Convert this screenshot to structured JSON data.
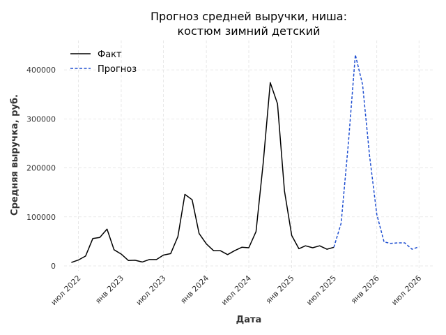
{
  "chart_data": {
    "type": "line",
    "title": [
      "Прогноз средней выручки, ниша:",
      "костюм зимний детский"
    ],
    "xlabel": "Дата",
    "ylabel": "Средняя выручка, руб.",
    "ylim": [
      -10000,
      460000
    ],
    "xlim": [
      "2022-05-01",
      "2026-09-01"
    ],
    "grid": true,
    "legend_position": "top-left",
    "x_ticks": [
      {
        "date": "2022-07-01",
        "label": "июл 2022"
      },
      {
        "date": "2023-01-01",
        "label": "янв 2023"
      },
      {
        "date": "2023-07-01",
        "label": "июл 2023"
      },
      {
        "date": "2024-01-01",
        "label": "янв 2024"
      },
      {
        "date": "2024-07-01",
        "label": "июл 2024"
      },
      {
        "date": "2025-01-01",
        "label": "янв 2025"
      },
      {
        "date": "2025-07-01",
        "label": "июл 2025"
      },
      {
        "date": "2026-01-01",
        "label": "янв 2026"
      },
      {
        "date": "2026-07-01",
        "label": "июл 2026"
      }
    ],
    "y_ticks": [
      {
        "value": 0,
        "label": "0"
      },
      {
        "value": 100000,
        "label": "100000"
      },
      {
        "value": 200000,
        "label": "200000"
      },
      {
        "value": 300000,
        "label": "300000"
      },
      {
        "value": 400000,
        "label": "400000"
      }
    ],
    "series": [
      {
        "name": "Факт",
        "color": "#000000",
        "style": "solid",
        "points": [
          [
            "2022-06-01",
            7000
          ],
          [
            "2022-07-01",
            12000
          ],
          [
            "2022-08-01",
            20000
          ],
          [
            "2022-09-01",
            56000
          ],
          [
            "2022-10-01",
            58000
          ],
          [
            "2022-11-01",
            75000
          ],
          [
            "2022-12-01",
            33000
          ],
          [
            "2023-01-01",
            24000
          ],
          [
            "2023-02-01",
            11000
          ],
          [
            "2023-03-01",
            11500
          ],
          [
            "2023-04-01",
            8000
          ],
          [
            "2023-05-01",
            13000
          ],
          [
            "2023-06-01",
            13000
          ],
          [
            "2023-07-01",
            22000
          ],
          [
            "2023-08-01",
            25000
          ],
          [
            "2023-09-01",
            60000
          ],
          [
            "2023-10-01",
            146000
          ],
          [
            "2023-11-01",
            135000
          ],
          [
            "2023-12-01",
            66000
          ],
          [
            "2024-01-01",
            45000
          ],
          [
            "2024-02-01",
            31000
          ],
          [
            "2024-03-01",
            31000
          ],
          [
            "2024-04-01",
            23000
          ],
          [
            "2024-05-01",
            31000
          ],
          [
            "2024-06-01",
            38000
          ],
          [
            "2024-07-01",
            37000
          ],
          [
            "2024-08-01",
            70000
          ],
          [
            "2024-09-01",
            210000
          ],
          [
            "2024-10-01",
            374000
          ],
          [
            "2024-11-01",
            331000
          ],
          [
            "2024-12-01",
            153000
          ],
          [
            "2025-01-01",
            62000
          ],
          [
            "2025-02-01",
            35000
          ],
          [
            "2025-03-01",
            41000
          ],
          [
            "2025-04-01",
            37000
          ],
          [
            "2025-05-01",
            41000
          ],
          [
            "2025-06-01",
            34000
          ],
          [
            "2025-07-01",
            38000
          ]
        ]
      },
      {
        "name": "Прогноз",
        "color": "#1f4fd1",
        "style": "dashed",
        "points": [
          [
            "2025-07-01",
            38000
          ],
          [
            "2025-08-01",
            87000
          ],
          [
            "2025-09-01",
            250000
          ],
          [
            "2025-10-01",
            431000
          ],
          [
            "2025-11-01",
            370000
          ],
          [
            "2025-12-01",
            225000
          ],
          [
            "2026-01-01",
            105000
          ],
          [
            "2026-02-01",
            49000
          ],
          [
            "2026-03-01",
            46000
          ],
          [
            "2026-04-01",
            47000
          ],
          [
            "2026-05-01",
            47000
          ],
          [
            "2026-06-01",
            34000
          ],
          [
            "2026-07-01",
            39000
          ]
        ]
      }
    ]
  }
}
